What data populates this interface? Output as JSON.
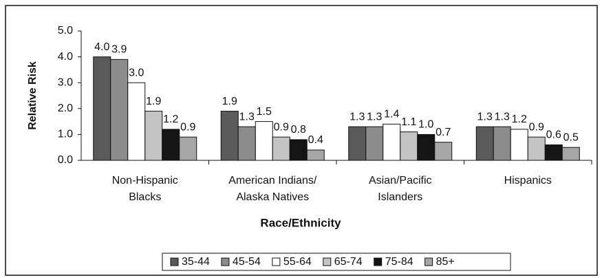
{
  "chart_data": {
    "type": "bar",
    "x_label": "Race/Ethnicity",
    "y_label": "Relative Risk",
    "categories": [
      [
        "Non-Hispanic",
        "Blacks"
      ],
      [
        "American Indians/",
        "Alaska Natives"
      ],
      [
        "Asian/Pacific",
        "Islanders"
      ],
      [
        "Hispanics"
      ]
    ],
    "series": [
      {
        "name": "35-44",
        "color": "#5a5a5a",
        "values": [
          4.0,
          1.9,
          1.3,
          1.3
        ],
        "value_labels": [
          "4.0",
          "1.9",
          "1.3",
          "1.3"
        ]
      },
      {
        "name": "45-54",
        "color": "#8c8c8c",
        "values": [
          3.9,
          1.3,
          1.3,
          1.3
        ],
        "value_labels": [
          "3.9",
          "1.3",
          "1.3",
          "1.3"
        ]
      },
      {
        "name": "55-64",
        "color": "#ffffff",
        "values": [
          3.0,
          1.5,
          1.4,
          1.2
        ],
        "value_labels": [
          "3.0",
          "1.5",
          "1.4",
          "1.2"
        ]
      },
      {
        "name": "65-74",
        "color": "#c4c4c4",
        "values": [
          1.9,
          0.9,
          1.1,
          0.9
        ],
        "value_labels": [
          "1.9",
          "0.9",
          "1.1",
          "0.9"
        ]
      },
      {
        "name": "75-84",
        "color": "#141414",
        "values": [
          1.2,
          0.8,
          1.0,
          0.6
        ],
        "value_labels": [
          "1.2",
          "0.8",
          "1.0",
          "0.6"
        ]
      },
      {
        "name": "85+",
        "color": "#a6a6a6",
        "values": [
          0.9,
          0.4,
          0.7,
          0.5
        ],
        "value_labels": [
          "0.9",
          "0.4",
          "0.7",
          "0.5"
        ]
      }
    ],
    "ylim": [
      0,
      5
    ],
    "yticks": [
      {
        "value": 0,
        "label": "0.0"
      },
      {
        "value": 1,
        "label": "1.0"
      },
      {
        "value": 2,
        "label": "2.0"
      },
      {
        "value": 3,
        "label": "3.0"
      },
      {
        "value": 4,
        "label": "4.0"
      },
      {
        "value": 5,
        "label": "5.0"
      }
    ],
    "legend": "bottom"
  }
}
